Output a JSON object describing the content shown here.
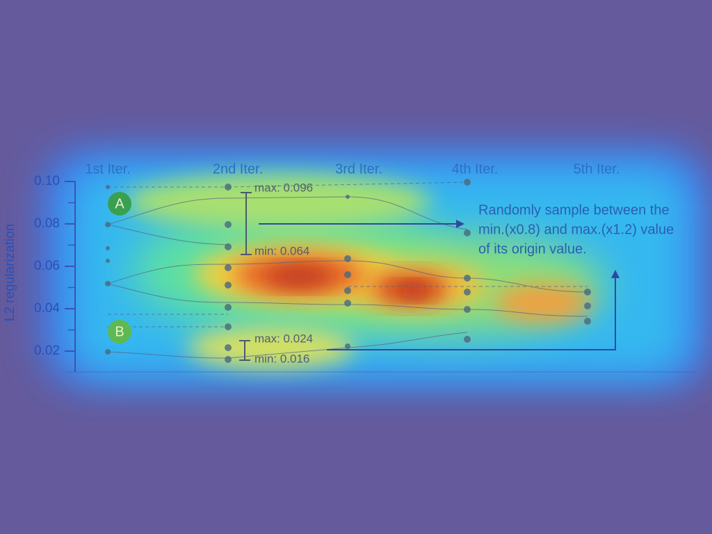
{
  "figure": {
    "axis": {
      "label": "L2 regularization",
      "ticks": [
        {
          "value": 0.1,
          "label": "0.10"
        },
        {
          "value": 0.08,
          "label": "0.08"
        },
        {
          "value": 0.06,
          "label": "0.06"
        },
        {
          "value": 0.04,
          "label": "0.04"
        },
        {
          "value": 0.02,
          "label": "0.02"
        }
      ]
    },
    "iterations": [
      "1st Iter.",
      "2nd Iter.",
      "3rd Iter.",
      "4th Iter.",
      "5th Iter."
    ],
    "markers": [
      "A",
      "B"
    ],
    "ranges": [
      {
        "max": "max: 0.096",
        "min": "min: 0.064"
      },
      {
        "max": "max: 0.024",
        "min": "min: 0.016"
      }
    ],
    "note": [
      "Randomly sample between the",
      "min.(x0.8) and max.(x1.2) value",
      "of its origin value."
    ]
  }
}
